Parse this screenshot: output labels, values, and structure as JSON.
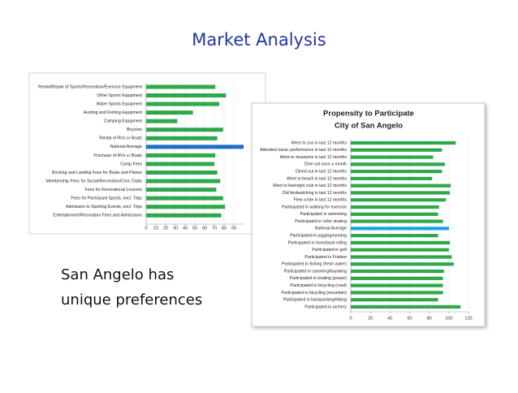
{
  "slide_title": "Market Analysis",
  "body_lines": [
    "San Angelo has",
    "unique preferences"
  ],
  "chart_data": [
    {
      "type": "hbar",
      "categories": [
        "Rental/Repair of Sports/Recreation/Exercise Equipment",
        "Other Sports Equipment",
        "Water Sports Equipment",
        "Hunting and Fishing Equipment",
        "Camping Equipment",
        "Bicycles",
        "Rental of RVs or Boats",
        "National Average",
        "Purchase of RVs or Boats",
        "Camp Fees",
        "Docking and Landing Fees for Boats and Planes",
        "Membership Fees for Social/Recreation/Civic Clubs",
        "Fees for Recreational Lessons",
        "Fees for Participant Sports, excl. Trips",
        "Admission to Sporting Events, excl. Trips",
        "Entertainment/Recreation Fees and Admissions"
      ],
      "values": [
        71,
        82,
        75,
        48,
        32,
        79,
        73,
        100,
        71,
        70,
        73,
        76,
        72,
        79,
        81,
        77
      ],
      "colors": [
        "#2ea84a",
        "#2ea84a",
        "#2ea84a",
        "#2ea84a",
        "#2ea84a",
        "#2ea84a",
        "#2ea84a",
        "#1f6fc9",
        "#2ea84a",
        "#2ea84a",
        "#2ea84a",
        "#2ea84a",
        "#2ea84a",
        "#2ea84a",
        "#2ea84a",
        "#2ea84a"
      ],
      "xlim": [
        0,
        100
      ],
      "xticks": [
        0,
        10,
        20,
        30,
        40,
        50,
        60,
        70,
        80,
        90
      ],
      "grid": true
    },
    {
      "type": "hbar",
      "title": "Propensity to Participate",
      "subtitle": "City of San Angelo",
      "categories": [
        "Went to zoo in last 12 months",
        "Attended music performance in last 12 months",
        "Went to museums in last 12 months",
        "Dine out once a month",
        "Dined out in last 12 months",
        "Went to beach in last 12 months",
        "Went to bar/night club in last 12 months",
        "Did birdwatching in last 12 months",
        "Flew a kite in last 12 months",
        "Participated in walking for exercise",
        "Participated in swimming",
        "Participated in roller skating",
        "National Average",
        "Participated in jogging/running",
        "Participated in horseback riding",
        "Participated in golf",
        "Participated in Frisbee",
        "Participated in fishing (fresh water)",
        "Participated in canoeing/kayaking",
        "Participated in boating (power)",
        "Participated in bicycling (road)",
        "Participated in bicycling (mountain)",
        "Participated in backpacking/hiking",
        "Participated in archery"
      ],
      "values": [
        107,
        93,
        84,
        96,
        93,
        83,
        102,
        101,
        97,
        90,
        89,
        94,
        100,
        89,
        101,
        100,
        103,
        105,
        95,
        94,
        94,
        94,
        89,
        112
      ],
      "colors": [
        "#2ea84a",
        "#2ea84a",
        "#2ea84a",
        "#2ea84a",
        "#2ea84a",
        "#2ea84a",
        "#2ea84a",
        "#2ea84a",
        "#2ea84a",
        "#2ea84a",
        "#2ea84a",
        "#2ea84a",
        "#19a3e8",
        "#2ea84a",
        "#2ea84a",
        "#2ea84a",
        "#2ea84a",
        "#2ea84a",
        "#2ea84a",
        "#2ea84a",
        "#2ea84a",
        "#2ea84a",
        "#2ea84a",
        "#2ea84a"
      ],
      "xlim": [
        0,
        120
      ],
      "xticks": [
        0,
        20,
        40,
        60,
        80,
        100,
        120
      ],
      "grid": true
    }
  ]
}
